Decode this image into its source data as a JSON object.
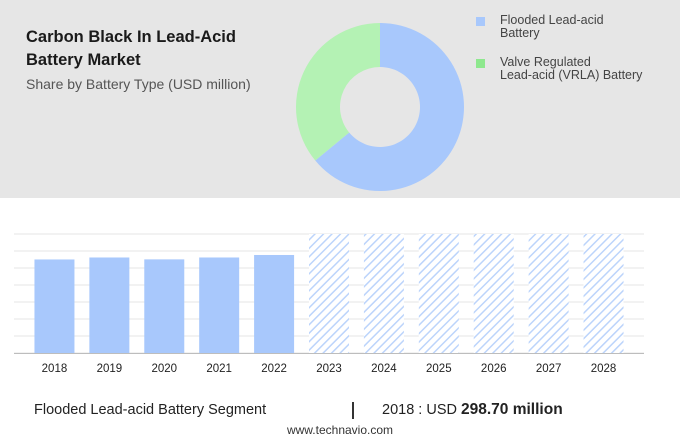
{
  "header": {
    "title": "Carbon Black In Lead-Acid Battery Market",
    "subtitle": "Share by Battery Type (USD million)"
  },
  "pie_chart": {
    "type": "pie",
    "style": "donut",
    "segments": [
      {
        "name": "Flooded Lead-acid Battery",
        "share": 0.64,
        "color": "#a8c8fc"
      },
      {
        "name": "Valve Regulated Lead-acid (VRLA) Battery",
        "share": 0.36,
        "color": "#b4f2b4"
      }
    ],
    "legend": [
      {
        "line1": "Flooded Lead-acid",
        "line2": "Battery",
        "color": "#a8c8fc"
      },
      {
        "line1": "Valve Regulated",
        "line2": "Lead-acid (VRLA) Battery",
        "color": "#8ee88e"
      }
    ],
    "legend_position": "right"
  },
  "chart_data": {
    "type": "bar",
    "categories": [
      "2018",
      "2019",
      "2020",
      "2021",
      "2022",
      "2023",
      "2024",
      "2025",
      "2026",
      "2027",
      "2028"
    ],
    "values": [
      298.7,
      305,
      299,
      305,
      313,
      null,
      null,
      null,
      null,
      null,
      null
    ],
    "forecast_categories": [
      "2023",
      "2024",
      "2025",
      "2026",
      "2027",
      "2028"
    ],
    "ylim": [
      0,
      380
    ],
    "grid": true,
    "bar_color": "#a8c8fc",
    "forecast_color": "#bcd4fb"
  },
  "footer": {
    "segment_label": "Flooded Lead-acid Battery Segment",
    "divider": "|",
    "year_label": "2018 : USD",
    "value_label": "298.70 million",
    "brand": "www.technavio.com"
  }
}
